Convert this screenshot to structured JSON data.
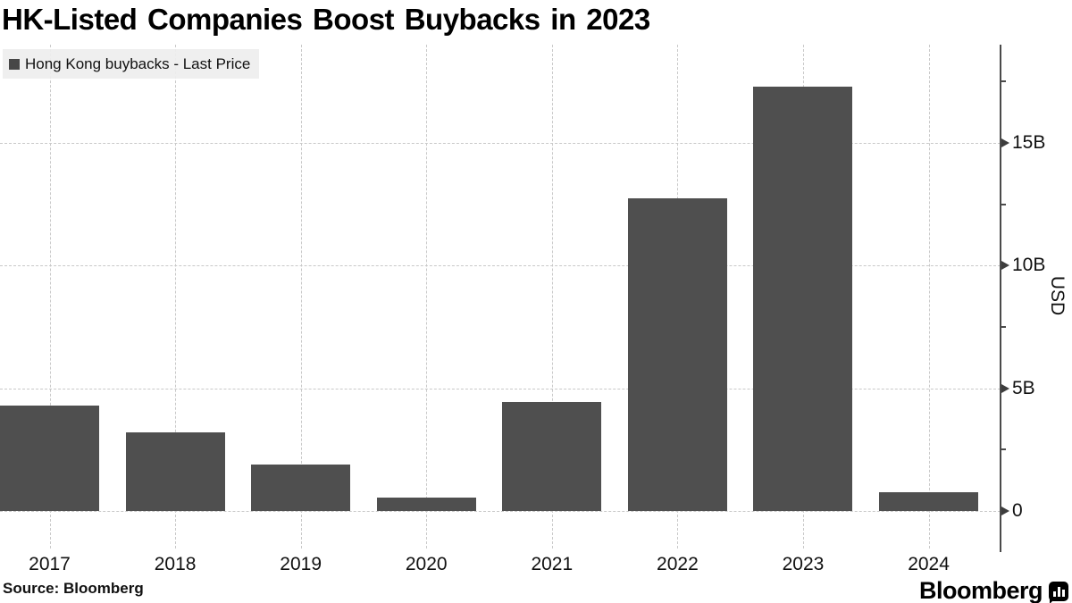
{
  "title": "HK-Listed Companies Boost Buybacks in 2023",
  "legend": {
    "label": "Hong Kong buybacks - Last Price",
    "swatch_color": "#474747"
  },
  "y_axis": {
    "unit_label": "USD",
    "tick_labels": [
      "0",
      "5B",
      "10B",
      "15B"
    ]
  },
  "source": "Source: Bloomberg",
  "brand": {
    "name": "Bloomberg",
    "icon": "bloomberg-chart-icon"
  },
  "colors": {
    "bar": "#4f4f4f",
    "gridline": "#c9c9c9",
    "axis": "#4a4a4a",
    "legend_bg": "#eeeeee"
  },
  "chart_data": {
    "type": "bar",
    "title": "HK-Listed Companies Boost Buybacks in 2023",
    "series_name": "Hong Kong buybacks - Last Price",
    "categories": [
      "2017",
      "2018",
      "2019",
      "2020",
      "2021",
      "2022",
      "2023",
      "2024"
    ],
    "values": [
      4.3,
      3.2,
      1.9,
      0.55,
      4.45,
      12.75,
      17.3,
      0.75
    ],
    "unit": "billions USD",
    "ylabel": "USD",
    "ylim": [
      0,
      19
    ],
    "yticks_major": [
      0,
      5,
      10,
      15
    ],
    "yticks_minor": [
      2.5,
      7.5,
      12.5,
      17.5
    ],
    "legend_position": "top-left",
    "y_axis_side": "right",
    "grid": "dashed"
  }
}
